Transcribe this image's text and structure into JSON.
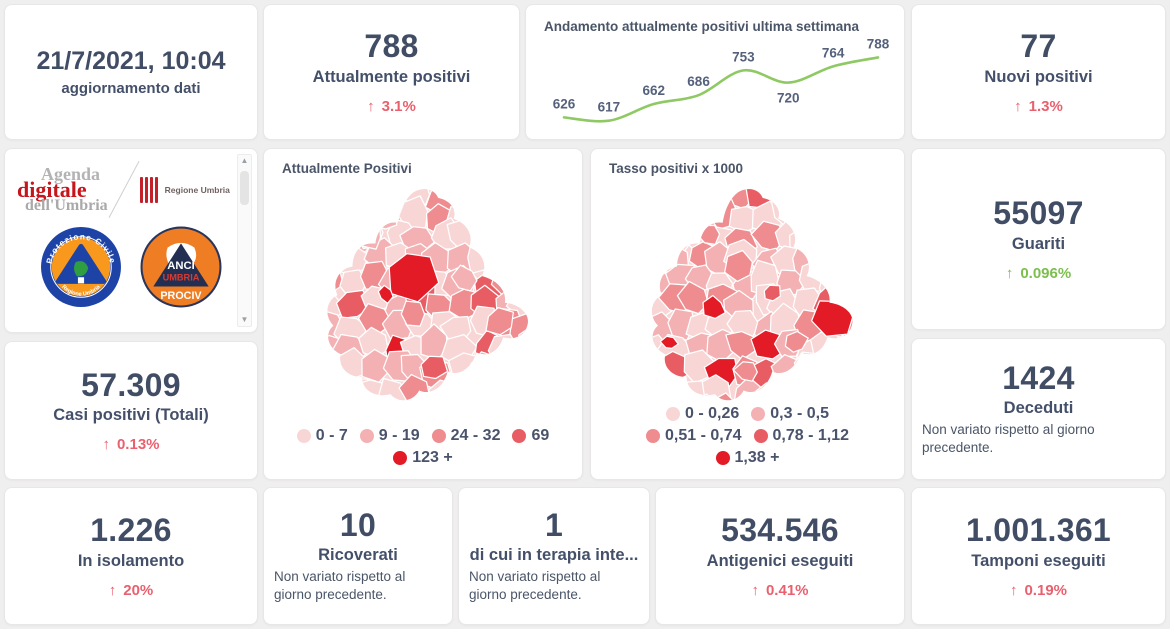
{
  "colors": {
    "red": "#e9606e",
    "green": "#7cbf4d",
    "number": "#414d65",
    "line_green": "#8ec963"
  },
  "icons": {
    "up_arrow": "↑",
    "scroll_up": "▲",
    "scroll_down": "▼"
  },
  "cards": {
    "update": {
      "value": "21/7/2021, 10:04",
      "label": "aggiornamento dati"
    },
    "attualmente_positivi": {
      "value": "788",
      "label": "Attualmente positivi",
      "delta": "3.1%"
    },
    "nuovi_positivi": {
      "value": "77",
      "label": "Nuovi positivi",
      "delta": "1.3%"
    },
    "guariti": {
      "value": "55097",
      "label": "Guariti",
      "delta": "0.096%"
    },
    "deceduti": {
      "value": "1424",
      "label": "Deceduti",
      "note": "Non variato rispetto al giorno precedente."
    },
    "casi_totali": {
      "value": "57.309",
      "label": "Casi positivi (Totali)",
      "delta": "0.13%"
    },
    "isolamento": {
      "value": "1.226",
      "label": "In isolamento",
      "delta": "20%"
    },
    "ricoverati": {
      "value": "10",
      "label": "Ricoverati",
      "note": "Non variato rispetto al giorno precedente."
    },
    "terapia_intensiva": {
      "value": "1",
      "label": "di cui in terapia inte...",
      "note": "Non variato rispetto al giorno precedente."
    },
    "antigenici": {
      "value": "534.546",
      "label": "Antigenici eseguiti",
      "delta": "0.41%"
    },
    "tamponi": {
      "value": "1.001.361",
      "label": "Tamponi eseguiti",
      "delta": "0.19%"
    }
  },
  "logos": {
    "agenda": {
      "line1": "Agenda",
      "line2": "digitale",
      "line3": "dell'Umbria"
    },
    "regione": {
      "label": "Regione Umbria"
    },
    "protezione_civile": {
      "arc_top": "Protezione Civile",
      "arc_bottom": "Regione Umbria"
    },
    "anci": {
      "line1": "ANCI",
      "line2": "UMBRIA",
      "line3": "PROCIV"
    }
  },
  "maps": {
    "attualmente": {
      "title": "Attualmente Positivi",
      "legend": [
        {
          "label": "0 - 7",
          "color": "#f8d6d6"
        },
        {
          "label": "9 - 19",
          "color": "#f4b1b3"
        },
        {
          "label": "24 - 32",
          "color": "#ee8c8f"
        },
        {
          "label": "69",
          "color": "#e85d63"
        },
        {
          "label": "123 +",
          "color": "#e31b26"
        }
      ],
      "legend_rows": [
        4,
        1
      ]
    },
    "tasso": {
      "title": "Tasso positivi x 1000",
      "legend": [
        {
          "label": "0 - 0,26",
          "color": "#f8d6d6"
        },
        {
          "label": "0,3 - 0,5",
          "color": "#f4b1b3"
        },
        {
          "label": "0,51 - 0,74",
          "color": "#ee8c8f"
        },
        {
          "label": "0,78 - 1,12",
          "color": "#e85d63"
        },
        {
          "label": "1,38 +",
          "color": "#e31b26"
        }
      ],
      "legend_rows": [
        2,
        2,
        1
      ]
    }
  },
  "chart_data": [
    {
      "type": "line",
      "title": "Andamento attualmente positivi ultima settimana",
      "x": [
        1,
        2,
        3,
        4,
        5,
        6,
        7,
        8
      ],
      "values": [
        626,
        617,
        662,
        686,
        753,
        720,
        764,
        788
      ],
      "xlabel": "",
      "ylabel": "",
      "ylim": [
        600,
        800
      ],
      "grid": false,
      "legend_position": "none",
      "line_color": "#8ec963",
      "data_labels": true,
      "smooth": true
    },
    {
      "type": "heatmap",
      "subtype": "choropleth-map",
      "title": "Attualmente Positivi",
      "region": "Umbria municipalities",
      "bins": [
        "0 - 7",
        "9 - 19",
        "24 - 32",
        "69",
        "123 +"
      ],
      "bin_colors": [
        "#f8d6d6",
        "#f4b1b3",
        "#ee8c8f",
        "#e85d63",
        "#e31b26"
      ],
      "legend_position": "bottom"
    },
    {
      "type": "heatmap",
      "subtype": "choropleth-map",
      "title": "Tasso positivi x 1000",
      "region": "Umbria municipalities",
      "bins": [
        "0 - 0,26",
        "0,3 - 0,5",
        "0,51 - 0,74",
        "0,78 - 1,12",
        "1,38 +"
      ],
      "bin_colors": [
        "#f8d6d6",
        "#f4b1b3",
        "#ee8c8f",
        "#e85d63",
        "#e31b26"
      ],
      "legend_position": "bottom"
    }
  ]
}
